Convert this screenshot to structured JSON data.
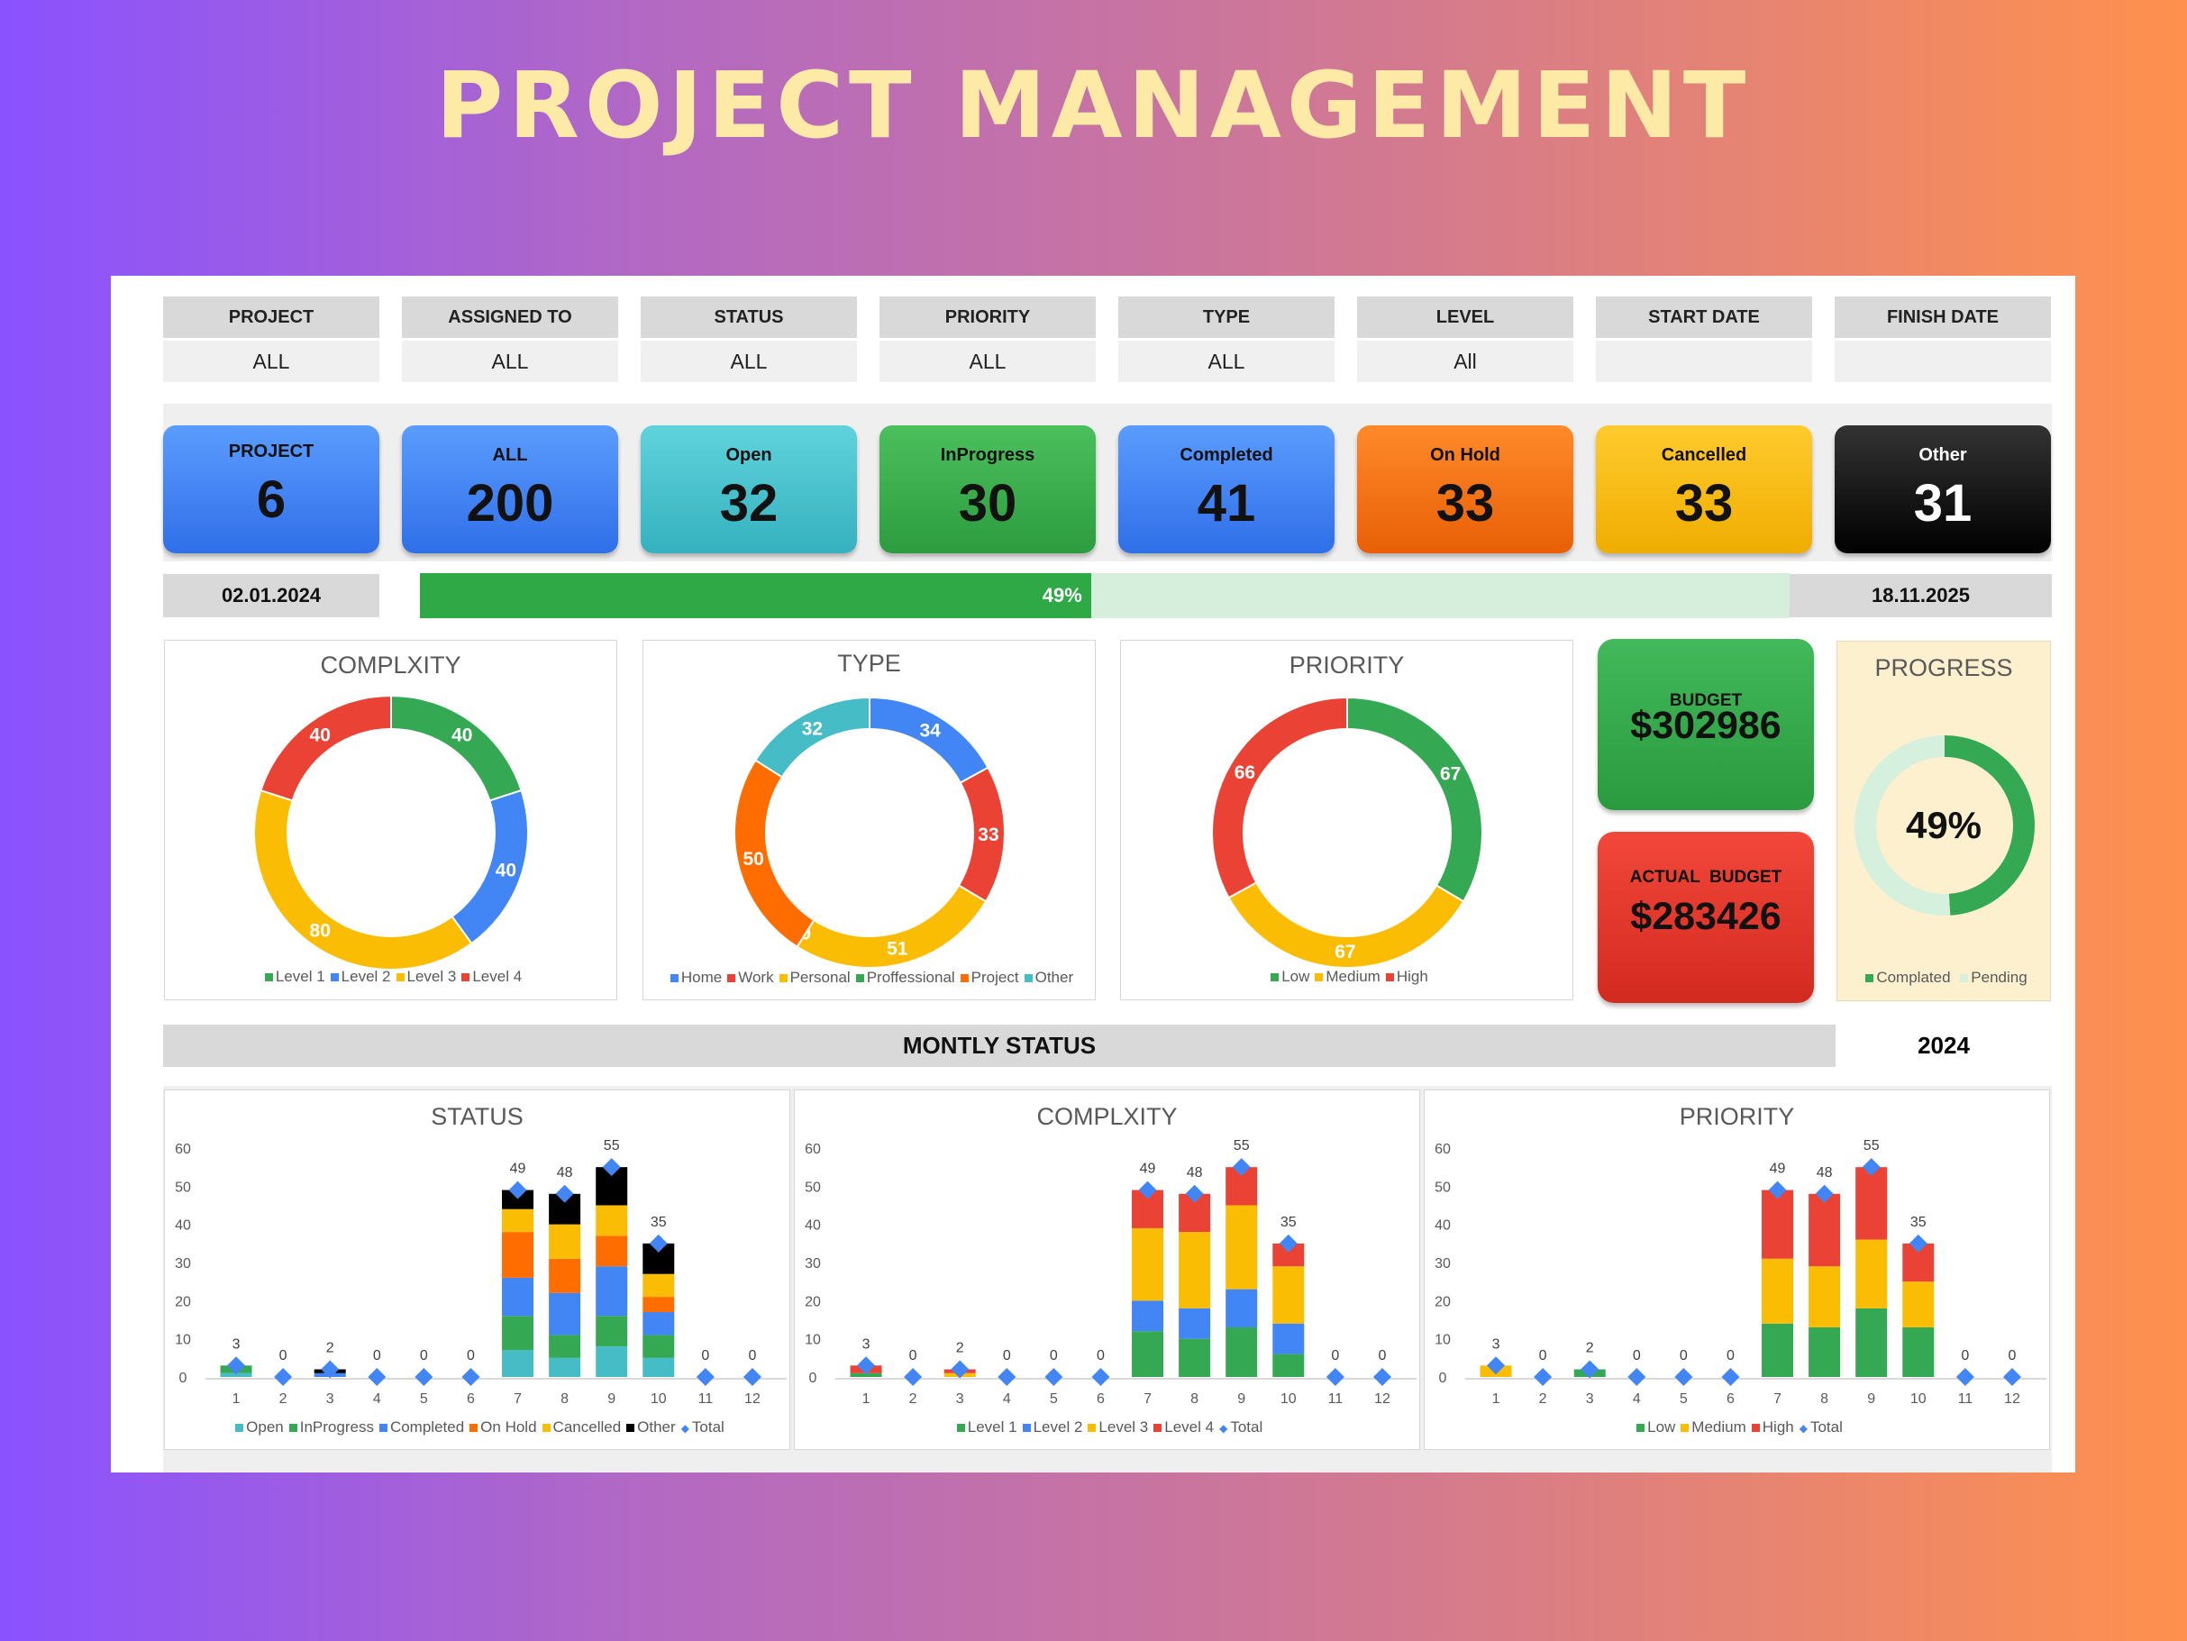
{
  "title": "PROJECT MANAGEMENT",
  "filters": [
    {
      "label": "PROJECT",
      "value": "ALL"
    },
    {
      "label": "ASSIGNED TO",
      "value": "ALL"
    },
    {
      "label": "STATUS",
      "value": "ALL"
    },
    {
      "label": "PRIORITY",
      "value": "ALL"
    },
    {
      "label": "TYPE",
      "value": "ALL"
    },
    {
      "label": "LEVEL",
      "value": "All"
    },
    {
      "label": "START DATE",
      "value": ""
    },
    {
      "label": "FINISH DATE",
      "value": ""
    }
  ],
  "kpis": [
    {
      "label": "PROJECT",
      "value": "6",
      "color_top": "#5b9cff",
      "color_bottom": "#2f6fe8",
      "text": "#111"
    },
    {
      "label": "ALL",
      "value": "200",
      "color_top": "#5b9cff",
      "color_bottom": "#2f6fe8",
      "text": "#111"
    },
    {
      "label": "Open",
      "value": "32",
      "color_top": "#5fd3dc",
      "color_bottom": "#35b1bf",
      "text": "#111"
    },
    {
      "label": "InProgress",
      "value": "30",
      "color_top": "#4cbf5d",
      "color_bottom": "#2c9c3e",
      "text": "#111"
    },
    {
      "label": "Completed",
      "value": "41",
      "color_top": "#5b9cff",
      "color_bottom": "#2f6fe8",
      "text": "#111"
    },
    {
      "label": "On Hold",
      "value": "33",
      "color_top": "#ff8a2a",
      "color_bottom": "#e85f06",
      "text": "#111"
    },
    {
      "label": "Cancelled",
      "value": "33",
      "color_top": "#ffcb2e",
      "color_bottom": "#f0ad00",
      "text": "#111"
    },
    {
      "label": "Other",
      "value": "31",
      "color_top": "#333333",
      "color_bottom": "#000000",
      "text": "#ffffff"
    }
  ],
  "timeline": {
    "start": "02.01.2024",
    "end": "18.11.2025",
    "progress_label": "49%",
    "progress": 0.49
  },
  "donuts": {
    "complexity": {
      "title": "COMPLXITY",
      "slices": [
        {
          "name": "Level 1",
          "value": 40,
          "color": "#34a853"
        },
        {
          "name": "Level 2",
          "value": 40,
          "color": "#4285f4"
        },
        {
          "name": "Level 3",
          "value": 80,
          "color": "#fbbc04"
        },
        {
          "name": "Level 4",
          "value": 40,
          "color": "#ea4335"
        }
      ]
    },
    "type": {
      "title": "TYPE",
      "slices": [
        {
          "name": "Home",
          "value": 34,
          "color": "#4285f4"
        },
        {
          "name": "Work",
          "value": 33,
          "color": "#ea4335"
        },
        {
          "name": "Personal",
          "value": 51,
          "color": "#fbbc04"
        },
        {
          "name": "Proffessional",
          "value": 0,
          "color": "#34a853"
        },
        {
          "name": "Project",
          "value": 50,
          "color": "#ff6d01"
        },
        {
          "name": "Other",
          "value": 32,
          "color": "#46bdc6"
        }
      ]
    },
    "priority": {
      "title": "PRIORITY",
      "slices": [
        {
          "name": "Low",
          "value": 67,
          "color": "#34a853"
        },
        {
          "name": "Medium",
          "value": 67,
          "color": "#fbbc04"
        },
        {
          "name": "High",
          "value": 66,
          "color": "#ea4335"
        }
      ]
    }
  },
  "budget": {
    "label": "BUDGET",
    "value": "$302986"
  },
  "actual_budget": {
    "label": "ACTUAL  BUDGET",
    "value": "$283426"
  },
  "progress_card": {
    "title": "PROGRESS",
    "value_label": "49%",
    "completed": 49,
    "pending": 51,
    "legend": [
      "Complated",
      "Pending"
    ]
  },
  "monthly": {
    "title": "MONTLY STATUS",
    "year": "2024"
  },
  "chart_data": [
    {
      "type": "bar",
      "title": "STATUS",
      "stacked": true,
      "categories": [
        "1",
        "2",
        "3",
        "4",
        "5",
        "6",
        "7",
        "8",
        "9",
        "10",
        "11",
        "12"
      ],
      "ylim": [
        0,
        60
      ],
      "yticks": [
        0,
        10,
        20,
        30,
        40,
        50,
        60
      ],
      "series": [
        {
          "name": "Open",
          "color": "#46bdc6",
          "values": [
            1,
            0,
            0,
            0,
            0,
            0,
            7,
            5,
            8,
            5,
            0,
            0
          ]
        },
        {
          "name": "InProgress",
          "color": "#34a853",
          "values": [
            2,
            0,
            0,
            0,
            0,
            0,
            9,
            6,
            8,
            6,
            0,
            0
          ]
        },
        {
          "name": "Completed",
          "color": "#4285f4",
          "values": [
            0,
            0,
            1,
            0,
            0,
            0,
            10,
            11,
            13,
            6,
            0,
            0
          ]
        },
        {
          "name": "On Hold",
          "color": "#ff6d01",
          "values": [
            0,
            0,
            0,
            0,
            0,
            0,
            12,
            9,
            8,
            4,
            0,
            0
          ]
        },
        {
          "name": "Cancelled",
          "color": "#fbbc04",
          "values": [
            0,
            0,
            0,
            0,
            0,
            0,
            6,
            9,
            8,
            6,
            0,
            0
          ]
        },
        {
          "name": "Other",
          "color": "#000000",
          "values": [
            0,
            0,
            1,
            0,
            0,
            0,
            5,
            8,
            10,
            8,
            0,
            0
          ]
        }
      ],
      "total": {
        "name": "Total",
        "color": "#4285f4",
        "values": [
          3,
          0,
          2,
          0,
          0,
          0,
          49,
          48,
          55,
          35,
          0,
          0
        ]
      }
    },
    {
      "type": "bar",
      "title": "COMPLXITY",
      "stacked": true,
      "categories": [
        "1",
        "2",
        "3",
        "4",
        "5",
        "6",
        "7",
        "8",
        "9",
        "10",
        "11",
        "12"
      ],
      "ylim": [
        0,
        60
      ],
      "yticks": [
        0,
        10,
        20,
        30,
        40,
        50,
        60
      ],
      "series": [
        {
          "name": "Level 1",
          "color": "#34a853",
          "values": [
            1,
            0,
            0,
            0,
            0,
            0,
            12,
            10,
            13,
            6,
            0,
            0
          ]
        },
        {
          "name": "Level 2",
          "color": "#4285f4",
          "values": [
            0,
            0,
            0,
            0,
            0,
            0,
            8,
            8,
            10,
            8,
            0,
            0
          ]
        },
        {
          "name": "Level 3",
          "color": "#fbbc04",
          "values": [
            0,
            0,
            1,
            0,
            0,
            0,
            19,
            20,
            22,
            15,
            0,
            0
          ]
        },
        {
          "name": "Level 4",
          "color": "#ea4335",
          "values": [
            2,
            0,
            1,
            0,
            0,
            0,
            10,
            10,
            10,
            6,
            0,
            0
          ]
        }
      ],
      "total": {
        "name": "Total",
        "color": "#4285f4",
        "values": [
          3,
          0,
          2,
          0,
          0,
          0,
          49,
          48,
          55,
          35,
          0,
          0
        ]
      }
    },
    {
      "type": "bar",
      "title": "PRIORITY",
      "stacked": true,
      "categories": [
        "1",
        "2",
        "3",
        "4",
        "5",
        "6",
        "7",
        "8",
        "9",
        "10",
        "11",
        "12"
      ],
      "ylim": [
        0,
        60
      ],
      "yticks": [
        0,
        10,
        20,
        30,
        40,
        50,
        60
      ],
      "series": [
        {
          "name": "Low",
          "color": "#34a853",
          "values": [
            0,
            0,
            2,
            0,
            0,
            0,
            14,
            13,
            18,
            13,
            0,
            0
          ]
        },
        {
          "name": "Medium",
          "color": "#fbbc04",
          "values": [
            3,
            0,
            0,
            0,
            0,
            0,
            17,
            16,
            18,
            12,
            0,
            0
          ]
        },
        {
          "name": "High",
          "color": "#ea4335",
          "values": [
            0,
            0,
            0,
            0,
            0,
            0,
            18,
            19,
            19,
            10,
            0,
            0
          ]
        }
      ],
      "total": {
        "name": "Total",
        "color": "#4285f4",
        "values": [
          3,
          0,
          2,
          0,
          0,
          0,
          49,
          48,
          55,
          35,
          0,
          0
        ]
      }
    }
  ]
}
